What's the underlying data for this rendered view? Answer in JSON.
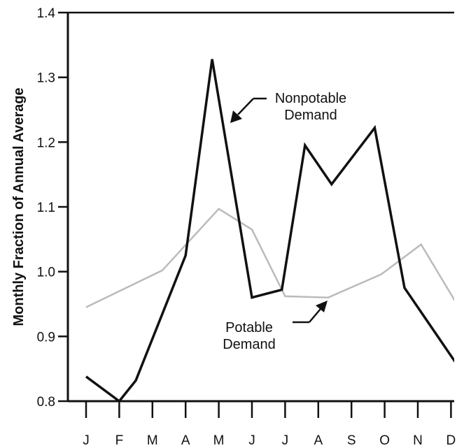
{
  "chart_data": {
    "type": "line",
    "title": "",
    "xlabel": "",
    "ylabel": "Monthly Fraction of Annual Average",
    "categories": [
      "J",
      "F",
      "M",
      "A",
      "M",
      "J",
      "J",
      "A",
      "S",
      "O",
      "N",
      "D"
    ],
    "ylim": [
      0.8,
      1.4
    ],
    "yticks": [
      "0.8",
      "0.9",
      "1.0",
      "1.1",
      "1.2",
      "1.3",
      "1.4"
    ],
    "grid": false,
    "series": [
      {
        "name": "Nonpotable Demand",
        "color": "#111111",
        "points": [
          {
            "x": 0.0,
            "y": 0.838
          },
          {
            "x": 1.0,
            "y": 0.8
          },
          {
            "x": 1.5,
            "y": 0.832
          },
          {
            "x": 3.0,
            "y": 1.025
          },
          {
            "x": 3.8,
            "y": 1.328
          },
          {
            "x": 5.0,
            "y": 0.96
          },
          {
            "x": 5.9,
            "y": 0.972
          },
          {
            "x": 6.6,
            "y": 1.195
          },
          {
            "x": 7.4,
            "y": 1.135
          },
          {
            "x": 8.7,
            "y": 1.222
          },
          {
            "x": 9.6,
            "y": 0.975
          },
          {
            "x": 11.2,
            "y": 0.855
          }
        ]
      },
      {
        "name": "Potable Demand",
        "color": "#bbbbbb",
        "points": [
          {
            "x": 0.0,
            "y": 0.945
          },
          {
            "x": 2.3,
            "y": 1.002
          },
          {
            "x": 4.0,
            "y": 1.097
          },
          {
            "x": 5.0,
            "y": 1.065
          },
          {
            "x": 6.0,
            "y": 0.962
          },
          {
            "x": 7.3,
            "y": 0.96
          },
          {
            "x": 8.9,
            "y": 0.996
          },
          {
            "x": 10.1,
            "y": 1.042
          },
          {
            "x": 11.2,
            "y": 0.948
          }
        ]
      }
    ],
    "annotations": [
      {
        "lines": [
          "Nonpotable",
          "Demand"
        ],
        "series": "Nonpotable Demand"
      },
      {
        "lines": [
          "Potable",
          "Demand"
        ],
        "series": "Potable Demand"
      }
    ]
  }
}
